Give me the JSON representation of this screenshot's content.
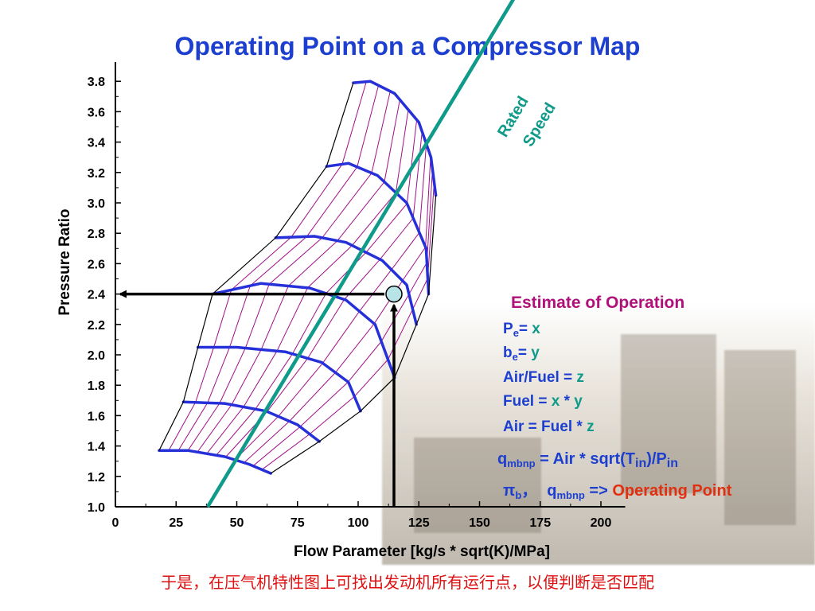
{
  "title": "Operating Point on a Compressor Map",
  "chart_data": {
    "type": "line",
    "title": "Operating Point on a Compressor Map",
    "xlabel": "Flow Parameter [kg/s * sqrt(K)/MPa]",
    "ylabel": "Pressure Ratio",
    "xlim": [
      0,
      210
    ],
    "ylim": [
      1.0,
      3.85
    ],
    "xticks": [
      "0",
      "25",
      "50",
      "75",
      "100",
      "125",
      "150",
      "175",
      "200"
    ],
    "yticks": [
      "1.0",
      "1.2",
      "1.4",
      "1.6",
      "1.8",
      "2.0",
      "2.2",
      "2.4",
      "2.6",
      "2.8",
      "3.0",
      "3.2",
      "3.4",
      "3.6",
      "3.8"
    ],
    "speed_lines": [
      [
        [
          18,
          1.37
        ],
        [
          30,
          1.37
        ],
        [
          45,
          1.33
        ],
        [
          55,
          1.28
        ],
        [
          64,
          1.22
        ]
      ],
      [
        [
          28,
          1.69
        ],
        [
          45,
          1.68
        ],
        [
          62,
          1.63
        ],
        [
          75,
          1.54
        ],
        [
          84,
          1.43
        ]
      ],
      [
        [
          34,
          2.05
        ],
        [
          50,
          2.05
        ],
        [
          70,
          2.02
        ],
        [
          85,
          1.95
        ],
        [
          96,
          1.82
        ],
        [
          101,
          1.63
        ]
      ],
      [
        [
          40,
          2.4
        ],
        [
          60,
          2.47
        ],
        [
          80,
          2.44
        ],
        [
          95,
          2.36
        ],
        [
          107,
          2.2
        ],
        [
          115,
          1.85
        ]
      ],
      [
        [
          66,
          2.77
        ],
        [
          82,
          2.78
        ],
        [
          95,
          2.74
        ],
        [
          110,
          2.62
        ],
        [
          120,
          2.46
        ],
        [
          124,
          2.2
        ]
      ],
      [
        [
          87,
          3.24
        ],
        [
          96,
          3.26
        ],
        [
          108,
          3.18
        ],
        [
          120,
          3.0
        ],
        [
          128,
          2.7
        ],
        [
          129,
          2.4
        ]
      ],
      [
        [
          98,
          3.79
        ],
        [
          105,
          3.8
        ],
        [
          115,
          3.72
        ],
        [
          125,
          3.53
        ],
        [
          130,
          3.3
        ],
        [
          132,
          3.05
        ]
      ]
    ],
    "surge_line": [
      [
        18,
        1.37
      ],
      [
        28,
        1.69
      ],
      [
        34,
        2.05
      ],
      [
        40,
        2.4
      ],
      [
        66,
        2.77
      ],
      [
        87,
        3.24
      ],
      [
        98,
        3.79
      ]
    ],
    "choke_line": [
      [
        64,
        1.22
      ],
      [
        84,
        1.43
      ],
      [
        101,
        1.63
      ],
      [
        115,
        1.85
      ],
      [
        124,
        2.2
      ],
      [
        129,
        2.4
      ],
      [
        132,
        3.05
      ]
    ],
    "rated_speed_line": [
      [
        38,
        1.0
      ],
      [
        143,
        3.8
      ]
    ],
    "operating_point": {
      "x": 92,
      "y": 2.4
    },
    "rated_speed_label": [
      "Rated",
      "Speed"
    ]
  },
  "annotations": {
    "estimate_title": "Estimate of Operation",
    "pe_symbol": "P",
    "pe_sub": "e",
    "pe_eq": "= ",
    "pe_val": "x",
    "be_symbol": "b",
    "be_sub": "e",
    "be_eq": "= ",
    "be_val": "y",
    "airfuel_label": "Air/Fuel = ",
    "airfuel_val": "z",
    "fuel_label": "Fuel = ",
    "fuel_x": "x",
    "fuel_mult": " * ",
    "fuel_y": "y",
    "air_label": "Air = Fuel * ",
    "air_z": "z",
    "q_symbol": "q",
    "q_sub": "mbnp",
    "q_eq": " = Air * sqrt(T",
    "q_tin": "in",
    "q_mid": ")/P",
    "q_pin": "in",
    "pi_symbol": "π",
    "pi_sub": "b",
    "pi_comma": "，",
    "q2_symbol": "q",
    "q2_sub": "mbnp",
    "arrow": " => ",
    "operating_point_label": "Operating Point"
  },
  "footer_text": "于是，在压气机特性图上可找出发动机所有运行点，以便判断是否匹配",
  "colors": {
    "title": "#1d3fcf",
    "speed_line": "#2630d8",
    "constant_eff": "#a0108a",
    "rated_speed": "#0f9a8a",
    "operating_point_fill": "#b8e4e8",
    "red_text": "#e03010"
  }
}
